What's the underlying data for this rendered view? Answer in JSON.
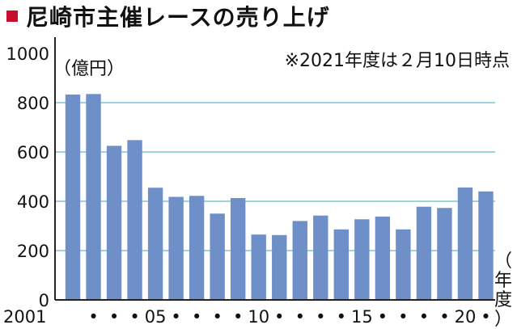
{
  "title": "尼崎市主催レースの売り上げ",
  "colors": {
    "accent": "#c8102e",
    "bar": "#6f8fc8",
    "grid": "#7fc4d6",
    "axis": "#222222"
  },
  "chart_data": {
    "type": "bar",
    "title": "尼崎市主催レースの売り上げ",
    "ylabel": "（億円）",
    "xlabel": "（年度）",
    "note": "※2021年度は２月10日時点",
    "ylim": [
      0,
      1000
    ],
    "yticks": [
      0,
      200,
      400,
      600,
      800,
      1000
    ],
    "grid": true,
    "categories": [
      "2001",
      "2002",
      "2003",
      "2004",
      "2005",
      "2006",
      "2007",
      "2008",
      "2009",
      "2010",
      "2011",
      "2012",
      "2013",
      "2014",
      "2015",
      "2016",
      "2017",
      "2018",
      "2019",
      "2020",
      "2021"
    ],
    "x_tick_labels": [
      "2001",
      "•",
      "•",
      "•",
      "05",
      "•",
      "•",
      "•",
      "•",
      "10",
      "•",
      "•",
      "•",
      "•",
      "15",
      "•",
      "•",
      "•",
      "•",
      "20",
      "•"
    ],
    "values": [
      833,
      835,
      625,
      648,
      455,
      418,
      422,
      350,
      413,
      265,
      263,
      320,
      342,
      286,
      327,
      338,
      286,
      378,
      373,
      456,
      440
    ]
  }
}
